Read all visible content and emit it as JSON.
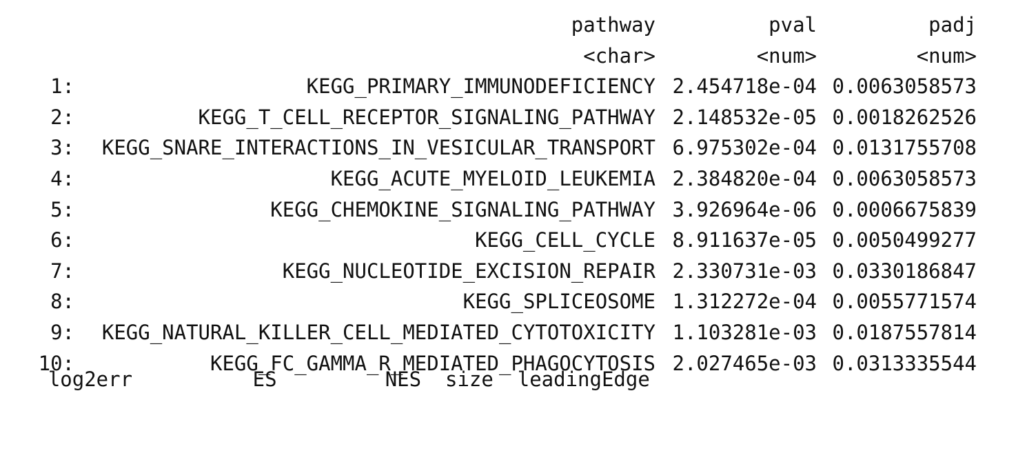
{
  "table": {
    "headers": {
      "pathway": "pathway",
      "pval": "pval",
      "padj": "padj"
    },
    "types": {
      "pathway": "<char>",
      "pval": "<num>",
      "padj": "<num>"
    },
    "rows": [
      {
        "idx": "1:",
        "pathway": "KEGG_PRIMARY_IMMUNODEFICIENCY",
        "pval": "2.454718e-04",
        "padj": "0.0063058573"
      },
      {
        "idx": "2:",
        "pathway": "KEGG_T_CELL_RECEPTOR_SIGNALING_PATHWAY",
        "pval": "2.148532e-05",
        "padj": "0.0018262526"
      },
      {
        "idx": "3:",
        "pathway": "KEGG_SNARE_INTERACTIONS_IN_VESICULAR_TRANSPORT",
        "pval": "6.975302e-04",
        "padj": "0.0131755708"
      },
      {
        "idx": "4:",
        "pathway": "KEGG_ACUTE_MYELOID_LEUKEMIA",
        "pval": "2.384820e-04",
        "padj": "0.0063058573"
      },
      {
        "idx": "5:",
        "pathway": "KEGG_CHEMOKINE_SIGNALING_PATHWAY",
        "pval": "3.926964e-06",
        "padj": "0.0006675839"
      },
      {
        "idx": "6:",
        "pathway": "KEGG_CELL_CYCLE",
        "pval": "8.911637e-05",
        "padj": "0.0050499277"
      },
      {
        "idx": "7:",
        "pathway": "KEGG_NUCLEOTIDE_EXCISION_REPAIR",
        "pval": "2.330731e-03",
        "padj": "0.0330186847"
      },
      {
        "idx": "8:",
        "pathway": "KEGG_SPLICEOSOME",
        "pval": "1.312272e-04",
        "padj": "0.0055771574"
      },
      {
        "idx": "9:",
        "pathway": "KEGG_NATURAL_KILLER_CELL_MEDIATED_CYTOTOXICITY",
        "pval": "1.103281e-03",
        "padj": "0.0187557814"
      },
      {
        "idx": "10:",
        "pathway": "KEGG_FC_GAMMA_R_MEDIATED_PHAGOCYTOSIS",
        "pval": "2.027465e-03",
        "padj": "0.0313335544"
      }
    ],
    "truncated_next_line": "    log2err          ES         NES  size  leadingEdge"
  }
}
